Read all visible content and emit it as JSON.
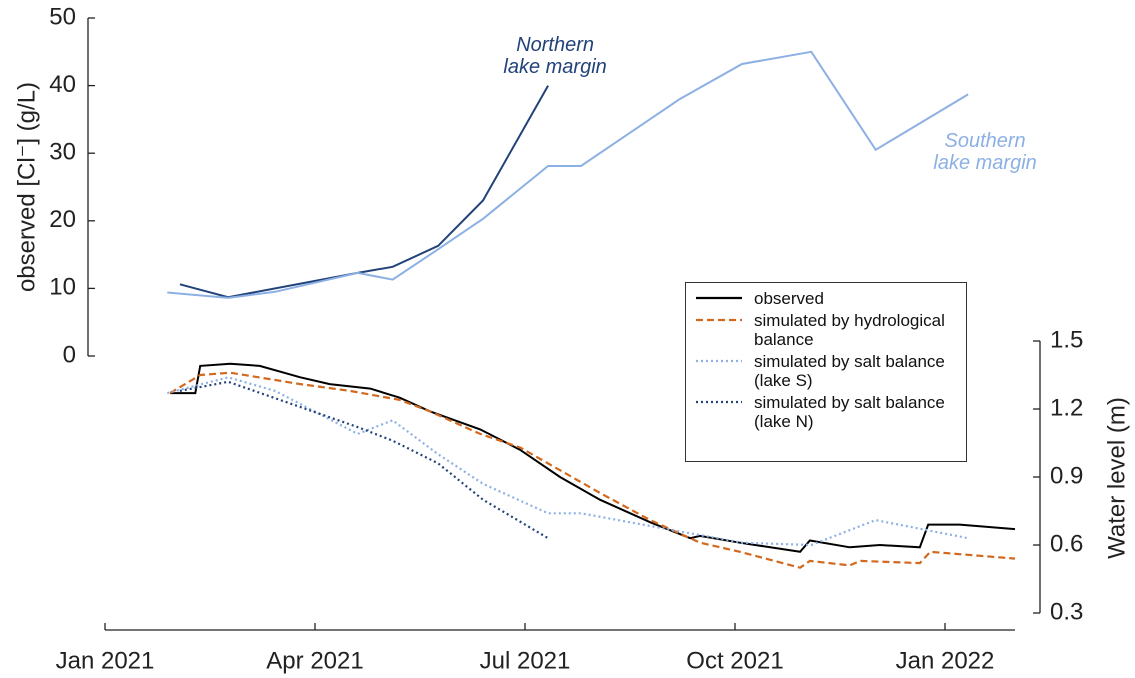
{
  "chart_data": {
    "type": "line",
    "y_label": "observed [Cl⁻] (g/L)",
    "y2_label": "Water level (m)",
    "xlim": [
      0,
      13
    ],
    "xticks": [
      {
        "value": 0,
        "label": "Jan 2021"
      },
      {
        "value": 3,
        "label": "Apr 2021"
      },
      {
        "value": 6,
        "label": "Jul 2021"
      },
      {
        "value": 9,
        "label": "Oct 2021"
      },
      {
        "value": 12,
        "label": "Jan 2022"
      }
    ],
    "ylim": [
      0,
      50
    ],
    "yticks": [
      0,
      10,
      20,
      30,
      40,
      50
    ],
    "y2lim": [
      0.3,
      1.5
    ],
    "y2ticks": [
      0.3,
      0.6,
      0.9,
      1.2,
      1.5
    ],
    "series": [
      {
        "name": "Northern lake margin",
        "color": "#22427a",
        "style": "solid",
        "x": [
          1.07,
          1.76,
          3.61,
          4.11,
          4.76,
          5.4,
          6.33
        ],
        "values": [
          10.6,
          8.7,
          12.3,
          13.2,
          16.3,
          23,
          40
        ]
      },
      {
        "name": "Southern lake margin",
        "color": "#8cb0e4",
        "style": "solid",
        "x": [
          0.89,
          1.76,
          2.43,
          3.61,
          4.11,
          4.76,
          5.4,
          6.33,
          6.8,
          8.21,
          9.1,
          10.09,
          11.01,
          12.33
        ],
        "values": [
          9.4,
          8.6,
          9.5,
          12.3,
          11.3,
          15.8,
          20.3,
          28.1,
          28.1,
          38,
          43.2,
          45,
          30.5,
          38.7
        ]
      },
      {
        "name": "observed",
        "color": "#000000",
        "style": "solid",
        "axis": "y2",
        "x": [
          0.93,
          1.29,
          1.36,
          1.79,
          2.21,
          2.79,
          3.21,
          3.79,
          4.21,
          4.64,
          5.36,
          5.93,
          6.5,
          7.07,
          7.79,
          8.36,
          8.5,
          9.07,
          9.93,
          10.07,
          10.64,
          11.07,
          11.64,
          11.76,
          12.21,
          13
        ],
        "values": [
          1.27,
          1.27,
          1.39,
          1.4,
          1.39,
          1.34,
          1.31,
          1.29,
          1.25,
          1.19,
          1.11,
          1.02,
          0.9,
          0.8,
          0.7,
          0.63,
          0.64,
          0.61,
          0.57,
          0.62,
          0.59,
          0.6,
          0.59,
          0.69,
          0.69,
          0.67
        ]
      },
      {
        "name": "simulated by hydrological balance",
        "color": "#d2691e",
        "style": "dashed",
        "axis": "y2",
        "x": [
          0.93,
          1.36,
          1.79,
          2.79,
          3.5,
          4.21,
          4.64,
          5.36,
          5.93,
          6.5,
          7.07,
          7.79,
          8.5,
          9.07,
          9.93,
          10.07,
          10.64,
          10.79,
          11.64,
          11.79,
          13
        ],
        "values": [
          1.27,
          1.35,
          1.36,
          1.31,
          1.28,
          1.24,
          1.19,
          1.09,
          1.03,
          0.93,
          0.83,
          0.71,
          0.61,
          0.57,
          0.5,
          0.53,
          0.51,
          0.53,
          0.52,
          0.57,
          0.54
        ]
      },
      {
        "name": "simulated by salt balance (lake S)",
        "color": "#8cb0e4",
        "style": "dotted",
        "axis": "y2",
        "x": [
          0.89,
          1.76,
          2.43,
          3.61,
          4.11,
          4.76,
          5.4,
          6.33,
          6.8,
          8.21,
          9.1,
          10.09,
          11.01,
          12.33
        ],
        "values": [
          1.27,
          1.34,
          1.28,
          1.09,
          1.15,
          1.0,
          0.87,
          0.74,
          0.74,
          0.66,
          0.61,
          0.6,
          0.71,
          0.63
        ]
      },
      {
        "name": "simulated by salt balance (lake N)",
        "color": "#22427a",
        "style": "dotted",
        "axis": "y2",
        "x": [
          1.07,
          1.76,
          3.61,
          4.11,
          4.76,
          5.4,
          6.33
        ],
        "values": [
          1.28,
          1.32,
          1.12,
          1.06,
          0.96,
          0.8,
          0.63
        ]
      }
    ]
  }
}
